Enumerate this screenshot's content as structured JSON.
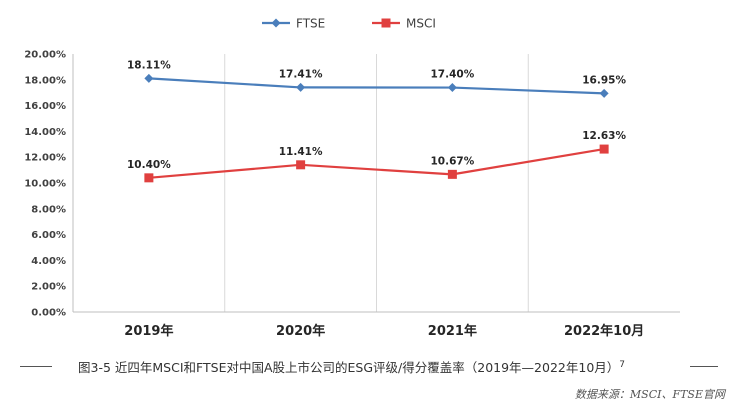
{
  "chart_data": {
    "type": "line",
    "title": "",
    "xlabel": "",
    "ylabel": "",
    "categories": [
      "2019年",
      "2020年",
      "2021年",
      "2022年10月"
    ],
    "ylim": [
      0,
      20
    ],
    "yticks": [
      "0.00%",
      "2.00%",
      "4.00%",
      "6.00%",
      "8.00%",
      "10.00%",
      "12.00%",
      "14.00%",
      "16.00%",
      "18.00%",
      "20.00%"
    ],
    "grid": "vertical",
    "legend_position": "top-center",
    "series": [
      {
        "name": "FTSE",
        "color": "#4a7ebb",
        "marker": "diamond",
        "values": [
          18.11,
          17.41,
          17.4,
          16.95
        ],
        "labels": [
          "18.11%",
          "17.41%",
          "17.40%",
          "16.95%"
        ]
      },
      {
        "name": "MSCI",
        "color": "#e0403f",
        "marker": "square",
        "values": [
          10.4,
          11.41,
          10.67,
          12.63
        ],
        "labels": [
          "10.40%",
          "11.41%",
          "10.67%",
          "12.63%"
        ]
      }
    ]
  },
  "caption": {
    "text": "图3-5  近四年MSCI和FTSE对中国A股上市公司的ESG评级/得分覆盖率（2019年—2022年10月）",
    "footnote": "7"
  },
  "source": "数据来源：MSCI、FTSE官网"
}
